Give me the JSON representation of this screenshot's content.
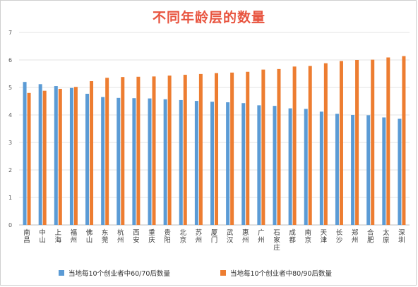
{
  "chart_data": {
    "type": "bar",
    "title": "不同年龄层的数量",
    "ylim": [
      0,
      7
    ],
    "yticks": [
      "0",
      "1",
      "2",
      "3",
      "4",
      "5",
      "6",
      "7"
    ],
    "grid": true,
    "legend_position": "bottom",
    "categories": [
      "南昌",
      "中山",
      "上海",
      "福州",
      "佛山",
      "东莞",
      "杭州",
      "西安",
      "重庆",
      "贵阳",
      "北京",
      "苏州",
      "厦门",
      "武汉",
      "惠州",
      "广州",
      "石家庄",
      "成都",
      "南京",
      "天津",
      "长沙",
      "郑州",
      "合肥",
      "太原",
      "深圳"
    ],
    "series": [
      {
        "name": "当地每10个创业者中60/70后数量",
        "color": "#5b9bd5",
        "values": [
          5.2,
          5.12,
          5.05,
          4.98,
          4.77,
          4.65,
          4.62,
          4.61,
          4.6,
          4.57,
          4.54,
          4.51,
          4.48,
          4.46,
          4.43,
          4.35,
          4.33,
          4.24,
          4.22,
          4.12,
          4.04,
          4.0,
          3.99,
          3.91,
          3.86
        ]
      },
      {
        "name": "当地每10个创业者中80/90后数量",
        "color": "#ed7d31",
        "values": [
          4.8,
          4.88,
          4.95,
          5.02,
          5.23,
          5.35,
          5.38,
          5.39,
          5.4,
          5.43,
          5.46,
          5.49,
          5.52,
          5.54,
          5.57,
          5.65,
          5.67,
          5.76,
          5.78,
          5.88,
          5.96,
          6.0,
          6.01,
          6.09,
          6.14
        ]
      }
    ]
  }
}
